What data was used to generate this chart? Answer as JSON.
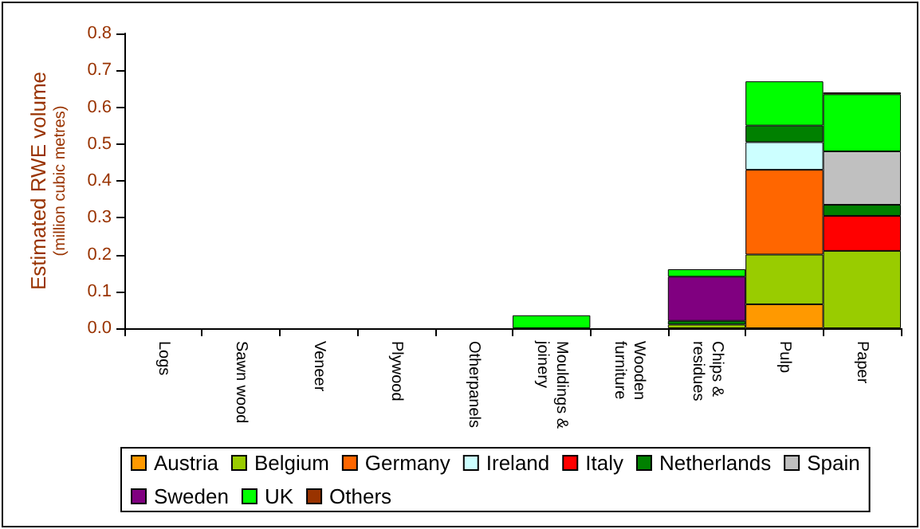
{
  "chart_data": {
    "type": "bar",
    "stacked": true,
    "ylabel": "Estimated RWE volume\n(million cubic metres)",
    "categories": [
      "Logs",
      "Sawn wood",
      "Veneer",
      "Plywood",
      "Otherpanels",
      "Mouldings & joinery",
      "Wooden furniture",
      "Chips & residues",
      "Pulp",
      "Paper"
    ],
    "series": [
      {
        "name": "Austria",
        "color": "#ff9900",
        "values": [
          null,
          null,
          null,
          null,
          null,
          null,
          null,
          null,
          0.065,
          null
        ]
      },
      {
        "name": "Belgium",
        "color": "#99cc00",
        "values": [
          null,
          null,
          null,
          null,
          null,
          null,
          null,
          0.01,
          0.135,
          0.21
        ]
      },
      {
        "name": "Germany",
        "color": "#ff6600",
        "values": [
          null,
          null,
          null,
          null,
          null,
          null,
          null,
          null,
          0.23,
          null
        ]
      },
      {
        "name": "Ireland",
        "color": "#ccffff",
        "values": [
          null,
          null,
          null,
          null,
          null,
          null,
          null,
          null,
          0.075,
          null
        ]
      },
      {
        "name": "Italy",
        "color": "#ff0000",
        "values": [
          null,
          null,
          null,
          null,
          null,
          null,
          null,
          null,
          null,
          0.095
        ]
      },
      {
        "name": "Netherlands",
        "color": "#008000",
        "values": [
          null,
          null,
          null,
          null,
          null,
          null,
          null,
          0.01,
          0.045,
          0.03
        ]
      },
      {
        "name": "Spain",
        "color": "#c0c0c0",
        "values": [
          null,
          null,
          null,
          null,
          null,
          null,
          null,
          null,
          null,
          0.145
        ]
      },
      {
        "name": "Sweden",
        "color": "#800080",
        "values": [
          null,
          null,
          null,
          null,
          null,
          null,
          null,
          0.12,
          null,
          null
        ]
      },
      {
        "name": "UK",
        "color": "#00ff00",
        "values": [
          null,
          null,
          null,
          null,
          null,
          0.035,
          null,
          0.02,
          0.12,
          0.155
        ]
      },
      {
        "name": "Others",
        "color": "#993300",
        "values": [
          null,
          null,
          null,
          null,
          null,
          null,
          null,
          null,
          null,
          0.005
        ]
      }
    ],
    "ylim": [
      0,
      0.8
    ],
    "yticks": [
      {
        "value": 0,
        "label": "0.0"
      },
      0.1,
      0.2,
      0.3,
      0.4,
      0.5,
      0.6,
      0.7,
      0.8
    ],
    "grid": false,
    "legend": "bottom"
  }
}
